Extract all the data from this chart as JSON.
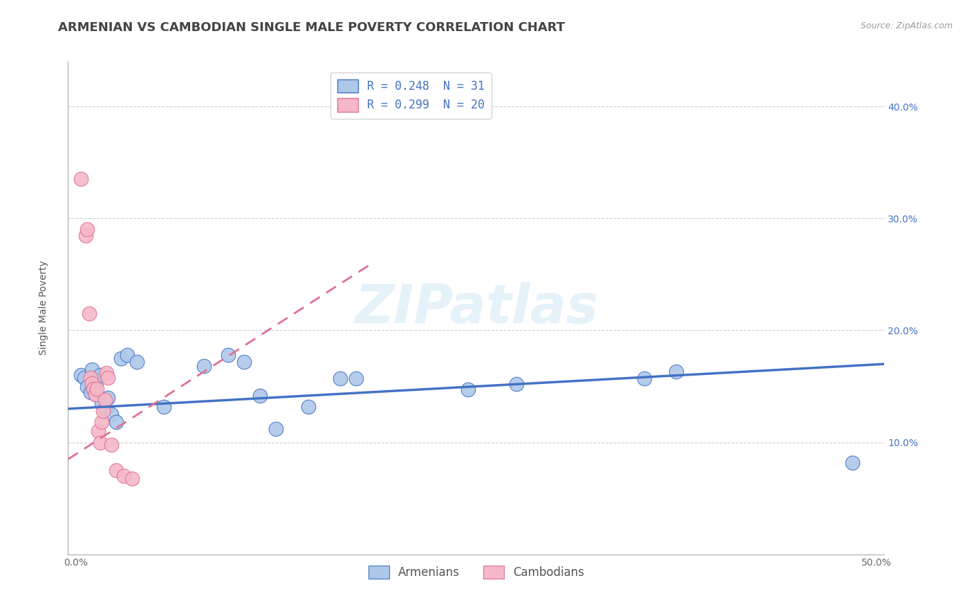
{
  "title": "ARMENIAN VS CAMBODIAN SINGLE MALE POVERTY CORRELATION CHART",
  "source": "Source: ZipAtlas.com",
  "ylabel": "Single Male Poverty",
  "xlim": [
    -0.005,
    0.505
  ],
  "ylim": [
    0.0,
    0.44
  ],
  "xticks": [
    0.0,
    0.1,
    0.2,
    0.3,
    0.4,
    0.5
  ],
  "xtick_labels": [
    "0.0%",
    "",
    "",
    "",
    "",
    "50.0%"
  ],
  "yticks": [
    0.1,
    0.2,
    0.3,
    0.4
  ],
  "ytick_labels": [
    "10.0%",
    "20.0%",
    "30.0%",
    "40.0%"
  ],
  "armenian_R": 0.248,
  "armenian_N": 31,
  "cambodian_R": 0.299,
  "cambodian_N": 20,
  "armenian_color": "#adc8e8",
  "cambodian_color": "#f5b8c8",
  "armenian_line_color": "#4472c4",
  "cambodian_line_color": "#e07090",
  "legend_armenian_face": "#adc8e8",
  "legend_cambodian_face": "#f5b8c8",
  "watermark": "ZIPatlas",
  "armenian_points": [
    [
      0.003,
      0.16
    ],
    [
      0.005,
      0.158
    ],
    [
      0.007,
      0.15
    ],
    [
      0.009,
      0.145
    ],
    [
      0.01,
      0.165
    ],
    [
      0.011,
      0.148
    ],
    [
      0.012,
      0.143
    ],
    [
      0.013,
      0.155
    ],
    [
      0.015,
      0.16
    ],
    [
      0.016,
      0.135
    ],
    [
      0.018,
      0.13
    ],
    [
      0.02,
      0.14
    ],
    [
      0.022,
      0.125
    ],
    [
      0.025,
      0.118
    ],
    [
      0.028,
      0.175
    ],
    [
      0.032,
      0.178
    ],
    [
      0.038,
      0.172
    ],
    [
      0.055,
      0.132
    ],
    [
      0.08,
      0.168
    ],
    [
      0.095,
      0.178
    ],
    [
      0.105,
      0.172
    ],
    [
      0.115,
      0.142
    ],
    [
      0.125,
      0.112
    ],
    [
      0.145,
      0.132
    ],
    [
      0.165,
      0.157
    ],
    [
      0.175,
      0.157
    ],
    [
      0.245,
      0.147
    ],
    [
      0.275,
      0.152
    ],
    [
      0.355,
      0.157
    ],
    [
      0.375,
      0.163
    ],
    [
      0.485,
      0.082
    ]
  ],
  "cambodian_points": [
    [
      0.003,
      0.335
    ],
    [
      0.006,
      0.285
    ],
    [
      0.007,
      0.29
    ],
    [
      0.008,
      0.215
    ],
    [
      0.009,
      0.158
    ],
    [
      0.01,
      0.153
    ],
    [
      0.011,
      0.148
    ],
    [
      0.012,
      0.143
    ],
    [
      0.013,
      0.148
    ],
    [
      0.014,
      0.11
    ],
    [
      0.015,
      0.1
    ],
    [
      0.016,
      0.118
    ],
    [
      0.017,
      0.128
    ],
    [
      0.018,
      0.138
    ],
    [
      0.019,
      0.162
    ],
    [
      0.02,
      0.158
    ],
    [
      0.022,
      0.098
    ],
    [
      0.025,
      0.075
    ],
    [
      0.03,
      0.07
    ],
    [
      0.035,
      0.068
    ]
  ],
  "armenian_line_x": [
    -0.005,
    0.505
  ],
  "armenian_line_y": [
    0.13,
    0.17
  ],
  "cambodian_line_x": [
    -0.005,
    0.185
  ],
  "cambodian_line_y": [
    0.085,
    0.26
  ],
  "background_color": "#ffffff",
  "grid_color": "#cccccc",
  "title_color": "#444444",
  "title_fontsize": 13,
  "axis_label_fontsize": 10,
  "tick_fontsize": 10,
  "legend_fontsize": 12
}
